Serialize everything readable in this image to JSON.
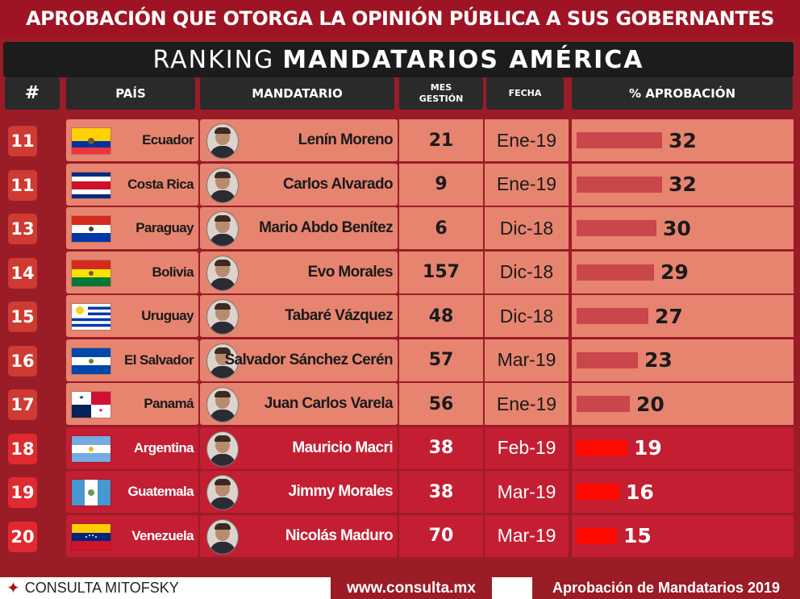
{
  "banner_title": "APROBACIÓN QUE OTORGA LA OPINIÓN PÚBLICA A SUS GOBERNANTES",
  "ranking": {
    "prefix": "RANKING",
    "bold": "MANDATARIOS AMÉRICA"
  },
  "columns": {
    "rank": "#",
    "country": "PAÍS",
    "president": "MANDATARIO",
    "months_line1": "MES",
    "months_line2": "GESTIÓN",
    "date": "FECHA",
    "approval": "% APROBACIÓN"
  },
  "colors": {
    "banner": "#9e1424",
    "light_row": "#e78470",
    "dark_row": "#c31e32",
    "light_rank": "#cf3a32",
    "dark_rank": "#e02a2f",
    "light_bar": "#c9464a",
    "dark_bar": "#ff0a00"
  },
  "chart_data": {
    "type": "bar",
    "title": "RANKING MANDATARIOS AMÉRICA",
    "ylabel": "% APROBACIÓN",
    "rows": [
      {
        "rank": "11",
        "country": "Ecuador",
        "flag": "ecuador-flag",
        "president": "Lenín Moreno",
        "months": "21",
        "date": "Ene-19",
        "approval": 32,
        "style": "light"
      },
      {
        "rank": "11",
        "country": "Costa Rica",
        "flag": "costa-rica-flag",
        "president": "Carlos Alvarado",
        "months": "9",
        "date": "Ene-19",
        "approval": 32,
        "style": "light"
      },
      {
        "rank": "13",
        "country": "Paraguay",
        "flag": "paraguay-flag",
        "president": "Mario Abdo Benítez",
        "months": "6",
        "date": "Dic-18",
        "approval": 30,
        "style": "light"
      },
      {
        "rank": "14",
        "country": "Bolivia",
        "flag": "bolivia-flag",
        "president": "Evo Morales",
        "months": "157",
        "date": "Dic-18",
        "approval": 29,
        "style": "light"
      },
      {
        "rank": "15",
        "country": "Uruguay",
        "flag": "uruguay-flag",
        "president": "Tabaré  Vázquez",
        "months": "48",
        "date": "Dic-18",
        "approval": 27,
        "style": "light"
      },
      {
        "rank": "16",
        "country": "El Salvador",
        "flag": "el-salvador-flag",
        "president": "Salvador Sánchez Cerén",
        "months": "57",
        "date": "Mar-19",
        "approval": 23,
        "style": "light"
      },
      {
        "rank": "17",
        "country": "Panamá",
        "flag": "panama-flag",
        "president": "Juan Carlos Varela",
        "months": "56",
        "date": "Ene-19",
        "approval": 20,
        "style": "light"
      },
      {
        "rank": "18",
        "country": "Argentina",
        "flag": "argentina-flag",
        "president": "Mauricio Macri",
        "months": "38",
        "date": "Feb-19",
        "approval": 19,
        "style": "dark"
      },
      {
        "rank": "19",
        "country": "Guatemala",
        "flag": "guatemala-flag",
        "president": "Jimmy Morales",
        "months": "38",
        "date": "Mar-19",
        "approval": 16,
        "style": "dark"
      },
      {
        "rank": "20",
        "country": "Venezuela",
        "flag": "venezuela-flag",
        "president": "Nicolás Maduro",
        "months": "70",
        "date": "Mar-19",
        "approval": 15,
        "style": "dark"
      }
    ]
  },
  "footer": {
    "logo_icon": "mitofsky-logo-icon",
    "brand": "CONSULTA MITOFSKY",
    "url": "www.consulta.mx",
    "caption": "Aprobación de Mandatarios 2019"
  }
}
